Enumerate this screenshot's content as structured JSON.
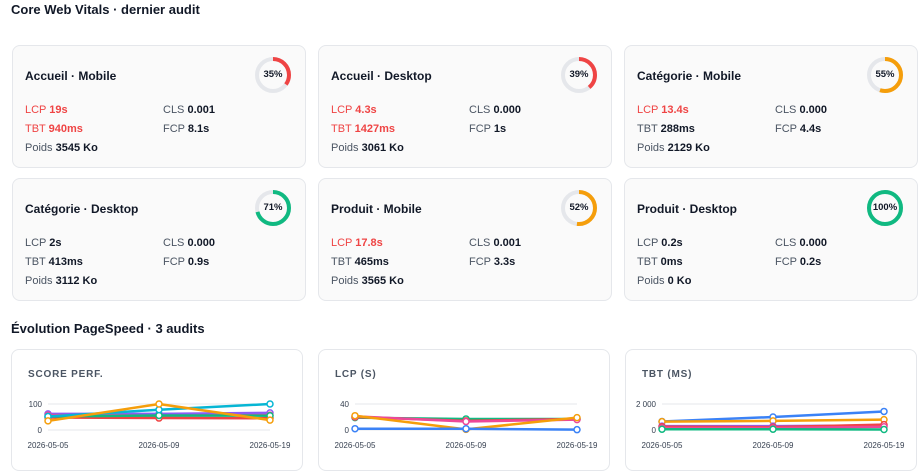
{
  "header": {
    "vitals_title": "Core Web Vitals · dernier audit",
    "evolution_title": "Évolution PageSpeed · 3 audits"
  },
  "colors": {
    "good": "#10b981",
    "average": "#f59e0b",
    "poor": "#ef4444",
    "track": "#e5e7eb"
  },
  "cards": [
    {
      "title": "Accueil · Mobile",
      "score": 35,
      "score_label": "35%",
      "status": "poor",
      "lcp": "19s",
      "lcp_bad": true,
      "cls": "0.001",
      "tbt": "940ms",
      "tbt_bad": true,
      "fcp": "8.1s",
      "weight": "3545 Ko"
    },
    {
      "title": "Accueil · Desktop",
      "score": 39,
      "score_label": "39%",
      "status": "poor",
      "lcp": "4.3s",
      "lcp_bad": true,
      "cls": "0.000",
      "tbt": "1427ms",
      "tbt_bad": true,
      "fcp": "1s",
      "weight": "3061 Ko"
    },
    {
      "title": "Catégorie · Mobile",
      "score": 55,
      "score_label": "55%",
      "status": "average",
      "lcp": "13.4s",
      "lcp_bad": true,
      "cls": "0.000",
      "tbt": "288ms",
      "tbt_bad": false,
      "fcp": "4.4s",
      "weight": "2129 Ko"
    },
    {
      "title": "Catégorie · Desktop",
      "score": 71,
      "score_label": "71%",
      "status": "good",
      "lcp": "2s",
      "lcp_bad": false,
      "cls": "0.000",
      "tbt": "413ms",
      "tbt_bad": false,
      "fcp": "0.9s",
      "weight": "3112 Ko"
    },
    {
      "title": "Produit · Mobile",
      "score": 52,
      "score_label": "52%",
      "status": "average",
      "lcp": "17.8s",
      "lcp_bad": true,
      "cls": "0.001",
      "tbt": "465ms",
      "tbt_bad": false,
      "fcp": "3.3s",
      "weight": "3565 Ko"
    },
    {
      "title": "Produit · Desktop",
      "score": 100,
      "score_label": "100%",
      "status": "good",
      "lcp": "0.2s",
      "lcp_bad": false,
      "cls": "0.000",
      "tbt": "0ms",
      "tbt_bad": false,
      "fcp": "0.2s",
      "weight": "0 Ko"
    }
  ],
  "metric_labels": {
    "lcp": "LCP",
    "cls": "CLS",
    "tbt": "TBT",
    "fcp": "FCP",
    "weight": "Poids"
  },
  "chart_data": [
    {
      "type": "line",
      "title": "SCORE PERF.",
      "x": [
        "2026-05-05",
        "2026-05-09",
        "2026-05-19"
      ],
      "yticks": [
        0,
        100
      ],
      "ytick_labels": [
        "0",
        "100"
      ],
      "ylim": [
        0,
        100
      ],
      "series": [
        {
          "color": "#8b5cf6",
          "values": [
            62,
            62,
            66
          ]
        },
        {
          "color": "#ec4899",
          "values": [
            57,
            55,
            57
          ]
        },
        {
          "color": "#ef4444",
          "values": [
            48,
            46,
            45
          ]
        },
        {
          "color": "#10b981",
          "values": [
            52,
            56,
            55
          ]
        },
        {
          "color": "#06b6d4",
          "values": [
            52,
            78,
            100
          ]
        },
        {
          "color": "#f59e0b",
          "values": [
            35,
            100,
            38
          ]
        }
      ]
    },
    {
      "type": "line",
      "title": "LCP (S)",
      "x": [
        "2026-05-05",
        "2026-05-09",
        "2026-05-19"
      ],
      "yticks": [
        0,
        40
      ],
      "ytick_labels": [
        "0",
        "40"
      ],
      "ylim": [
        0,
        40
      ],
      "series": [
        {
          "color": "#10b981",
          "values": [
            19,
            17,
            17
          ]
        },
        {
          "color": "#ef4444",
          "values": [
            20,
            14,
            17
          ]
        },
        {
          "color": "#ec4899",
          "values": [
            21,
            13,
            16
          ]
        },
        {
          "color": "#f59e0b",
          "values": [
            22,
            1,
            19
          ]
        },
        {
          "color": "#3b82f6",
          "values": [
            2,
            2,
            0.5
          ]
        }
      ]
    },
    {
      "type": "line",
      "title": "TBT (MS)",
      "x": [
        "2026-05-05",
        "2026-05-09",
        "2026-05-19"
      ],
      "yticks": [
        0,
        2000
      ],
      "ytick_labels": [
        "0",
        "2 000"
      ],
      "ylim": [
        0,
        2000
      ],
      "series": [
        {
          "color": "#3b82f6",
          "values": [
            650,
            1000,
            1427
          ]
        },
        {
          "color": "#f59e0b",
          "values": [
            640,
            700,
            800
          ]
        },
        {
          "color": "#8b5cf6",
          "values": [
            300,
            300,
            350
          ]
        },
        {
          "color": "#ef4444",
          "values": [
            250,
            220,
            413
          ]
        },
        {
          "color": "#ec4899",
          "values": [
            150,
            150,
            250
          ]
        },
        {
          "color": "#10b981",
          "values": [
            60,
            60,
            40
          ]
        }
      ]
    }
  ]
}
